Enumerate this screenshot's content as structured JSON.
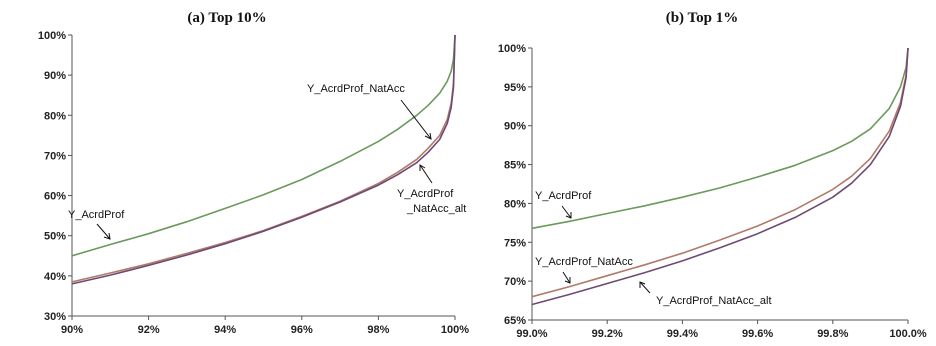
{
  "chart_data": [
    {
      "type": "line",
      "title": "(a) Top 10%",
      "xlabel": "",
      "ylabel": "",
      "xlim": [
        90,
        100
      ],
      "ylim": [
        30,
        100
      ],
      "x_ticks": [
        "90%",
        "92%",
        "94%",
        "96%",
        "98%",
        "100%"
      ],
      "y_ticks": [
        "30%",
        "40%",
        "50%",
        "60%",
        "70%",
        "80%",
        "90%",
        "100%"
      ],
      "grid": false,
      "legend": "inline annotations",
      "series": [
        {
          "name": "Y_AcrdProf",
          "color": "#6a9a5c",
          "x": [
            90,
            91,
            92,
            93,
            94,
            95,
            96,
            97,
            98,
            98.5,
            99,
            99.3,
            99.6,
            99.8,
            99.9,
            99.96,
            100
          ],
          "y": [
            45,
            47.8,
            50.5,
            53.5,
            56.8,
            60.2,
            64.0,
            68.5,
            73.5,
            76.5,
            80,
            82.5,
            85.5,
            88.5,
            91,
            94,
            100
          ]
        },
        {
          "name": "Y_AcrdProf_NatAcc",
          "color": "#b07a6a",
          "x": [
            90,
            91,
            92,
            93,
            94,
            95,
            96,
            97,
            98,
            98.5,
            99,
            99.3,
            99.6,
            99.8,
            99.9,
            99.96,
            100
          ],
          "y": [
            38.5,
            40.7,
            43.0,
            45.6,
            48.3,
            51.3,
            54.8,
            58.6,
            63.0,
            65.8,
            69,
            71.8,
            75,
            79,
            83,
            88,
            100
          ]
        },
        {
          "name": "Y_AcrdProf_NatAcc_alt",
          "color": "#6e4a72",
          "x": [
            90,
            91,
            92,
            93,
            94,
            95,
            96,
            97,
            98,
            98.5,
            99,
            99.3,
            99.6,
            99.8,
            99.9,
            99.96,
            100
          ],
          "y": [
            38.0,
            40.2,
            42.6,
            45.2,
            48.0,
            51.1,
            54.6,
            58.4,
            62.6,
            65.2,
            68.2,
            70.8,
            74,
            78,
            82,
            87,
            100
          ]
        }
      ],
      "annotations": [
        {
          "text": "Y_AcrdProf",
          "series": "Y_AcrdProf"
        },
        {
          "text": "Y_AcrdProf_NatAcc",
          "series": "Y_AcrdProf_NatAcc"
        },
        {
          "text": "Y_AcrdProf",
          "text2": "_NatAcc_alt",
          "series": "Y_AcrdProf_NatAcc_alt"
        }
      ]
    },
    {
      "type": "line",
      "title": "(b) Top 1%",
      "xlabel": "",
      "ylabel": "",
      "xlim": [
        99.0,
        100.0
      ],
      "ylim": [
        65,
        100
      ],
      "x_ticks": [
        "99.0%",
        "99.2%",
        "99.4%",
        "99.6%",
        "99.8%",
        "100.0%"
      ],
      "y_ticks": [
        "65%",
        "70%",
        "75%",
        "80%",
        "85%",
        "90%",
        "95%",
        "100%"
      ],
      "grid": false,
      "legend": "inline annotations",
      "series": [
        {
          "name": "Y_AcrdProf",
          "color": "#6a9a5c",
          "x": [
            99.0,
            99.1,
            99.2,
            99.3,
            99.4,
            99.5,
            99.6,
            99.7,
            99.8,
            99.85,
            99.9,
            99.95,
            99.98,
            99.995,
            100.0
          ],
          "y": [
            76.8,
            77.7,
            78.7,
            79.7,
            80.8,
            82.0,
            83.4,
            84.9,
            86.8,
            88.0,
            89.6,
            92.2,
            95.0,
            97.5,
            100
          ]
        },
        {
          "name": "Y_AcrdProf_NatAcc",
          "color": "#b07a6a",
          "x": [
            99.0,
            99.1,
            99.2,
            99.3,
            99.4,
            99.5,
            99.6,
            99.7,
            99.8,
            99.85,
            99.9,
            99.95,
            99.98,
            99.995,
            100.0
          ],
          "y": [
            68.0,
            69.3,
            70.7,
            72.1,
            73.6,
            75.3,
            77.1,
            79.2,
            81.8,
            83.5,
            85.8,
            89.3,
            93.0,
            96.5,
            100
          ]
        },
        {
          "name": "Y_AcrdProf_NatAcc_alt",
          "color": "#6e4a72",
          "x": [
            99.0,
            99.1,
            99.2,
            99.3,
            99.4,
            99.5,
            99.6,
            99.7,
            99.8,
            99.85,
            99.9,
            99.95,
            99.98,
            99.995,
            100.0
          ],
          "y": [
            67.0,
            68.3,
            69.7,
            71.1,
            72.6,
            74.3,
            76.1,
            78.2,
            80.8,
            82.6,
            85.0,
            88.6,
            92.5,
            96.2,
            100
          ]
        }
      ],
      "annotations": [
        {
          "text": "Y_AcrdProf",
          "series": "Y_AcrdProf"
        },
        {
          "text": "Y_AcrdProf_NatAcc",
          "series": "Y_AcrdProf_NatAcc"
        },
        {
          "text": "Y_AcrdProf_NatAcc_alt",
          "series": "Y_AcrdProf_NatAcc_alt"
        }
      ]
    }
  ]
}
